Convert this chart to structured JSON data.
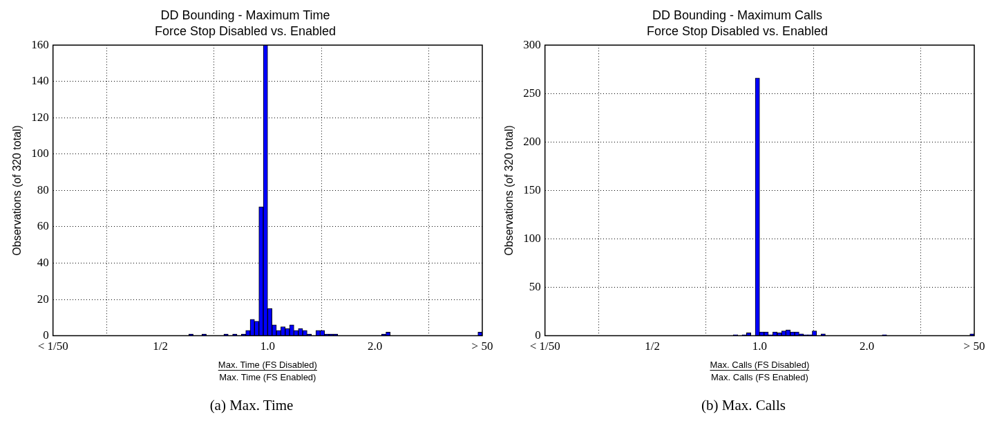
{
  "chart_data": [
    {
      "type": "histogram",
      "title": "DD Bounding - Maximum Time",
      "subtitle": "Force Stop Disabled vs. Enabled",
      "xlabel": "Max. Time (FS Disabled)\nMax. Time (FS Enabled)",
      "ylabel": "Observations (of 320 total)",
      "color": "#0000ff",
      "bins": [
        0.25,
        0.2572,
        0.2646,
        0.2721,
        0.28,
        0.288,
        0.2963,
        0.3048,
        0.3135,
        0.3225,
        0.3318,
        0.3413,
        0.3511,
        0.3611,
        0.3715,
        0.3822,
        0.3931,
        0.4044,
        0.416,
        0.428,
        0.4402,
        0.4529,
        0.4659,
        0.4792,
        0.493,
        0.5071,
        0.5217,
        0.5367,
        0.5521,
        0.5679,
        0.5842,
        0.601,
        0.6182,
        0.6359,
        0.6542,
        0.673,
        0.6923,
        0.7121,
        0.7326,
        0.7536,
        0.7752,
        0.7975,
        0.8203,
        0.8439,
        0.8681,
        0.893,
        0.9186,
        0.945,
        0.9721,
        1,
        1.0287,
        1.0582,
        1.0886,
        1.1198,
        1.152,
        1.185,
        1.219,
        1.254,
        1.29,
        1.327,
        1.3651,
        1.4043,
        1.4446,
        1.486,
        1.5287,
        1.5725,
        1.6177,
        1.6641,
        1.7118,
        1.7609,
        1.8115,
        1.8635,
        1.9169,
        1.9719,
        2.0285,
        2.0867,
        2.1466,
        2.2082,
        2.2716,
        2.3368,
        2.4038,
        2.4728,
        2.5438,
        2.6167,
        2.6918,
        2.7691,
        2.8485,
        2.9303,
        3.0144,
        3.1009,
        3.1899,
        3.2814,
        3.3756,
        3.4724,
        3.5721,
        3.6746,
        3.78,
        3.8885,
        4
      ],
      "values": [
        0,
        0,
        0,
        0,
        0,
        0,
        0,
        0,
        0,
        0,
        0,
        0,
        0,
        0,
        0,
        0,
        0,
        0,
        0,
        0,
        0,
        0,
        0,
        0,
        0,
        0,
        0,
        0,
        0,
        0,
        0,
        1,
        0,
        0,
        1,
        0,
        0,
        0,
        0,
        1,
        0,
        1,
        0,
        1,
        3,
        9,
        8,
        71,
        160,
        15,
        6,
        3,
        5,
        4,
        6,
        3,
        4,
        3,
        1,
        0,
        3,
        3,
        1,
        1,
        1,
        0,
        0,
        0,
        0,
        0,
        0,
        0,
        0,
        0,
        0,
        1,
        2,
        0,
        0,
        0,
        0,
        0,
        0,
        0,
        0,
        0,
        0,
        0,
        0,
        0,
        0,
        0,
        0,
        0,
        0,
        0,
        0,
        2
      ],
      "log": "x",
      "xlim": [
        0.25,
        4
      ],
      "xticks": [
        {
          "value": 0.25,
          "label": "< 1/50"
        },
        {
          "value": 0.5,
          "label": "1/2"
        },
        {
          "value": 1,
          "label": "1.0"
        },
        {
          "value": 2,
          "label": "2.0"
        },
        {
          "value": 4,
          "label": "> 50"
        }
      ],
      "ylim": [
        0,
        160
      ],
      "yticks": [
        0,
        20,
        40,
        60,
        80,
        100,
        120,
        140,
        160
      ],
      "grid": true,
      "annotations": [
        "(a) Max. Time"
      ]
    },
    {
      "type": "histogram",
      "title": "DD Bounding - Maximum Calls",
      "subtitle": "Force Stop Disabled vs. Enabled",
      "xlabel": "Max. Calls (FS Disabled)\nMax. Calls (FS Enabled)",
      "ylabel": "Observations (of 320 total)",
      "color": "#0000ff",
      "bins": [
        0.25,
        0.2572,
        0.2646,
        0.2721,
        0.28,
        0.288,
        0.2963,
        0.3048,
        0.3135,
        0.3225,
        0.3318,
        0.3413,
        0.3511,
        0.3611,
        0.3715,
        0.3822,
        0.3931,
        0.4044,
        0.416,
        0.428,
        0.4402,
        0.4529,
        0.4659,
        0.4792,
        0.493,
        0.5071,
        0.5217,
        0.5367,
        0.5521,
        0.5679,
        0.5842,
        0.601,
        0.6182,
        0.6359,
        0.6542,
        0.673,
        0.6923,
        0.7121,
        0.7326,
        0.7536,
        0.7752,
        0.7975,
        0.8203,
        0.8439,
        0.8681,
        0.893,
        0.9186,
        0.945,
        0.9721,
        1,
        1.0287,
        1.0582,
        1.0886,
        1.1198,
        1.152,
        1.185,
        1.219,
        1.254,
        1.29,
        1.327,
        1.3651,
        1.4043,
        1.4446,
        1.486,
        1.5287,
        1.5725,
        1.6177,
        1.6641,
        1.7118,
        1.7609,
        1.8115,
        1.8635,
        1.9169,
        1.9719,
        2.0285,
        2.0867,
        2.1466,
        2.2082,
        2.2716,
        2.3368,
        2.4038,
        2.4728,
        2.5438,
        2.6167,
        2.6918,
        2.7691,
        2.8485,
        2.9303,
        3.0144,
        3.1009,
        3.1899,
        3.2814,
        3.3756,
        3.4724,
        3.5721,
        3.6746,
        3.78,
        3.8885,
        4
      ],
      "values": [
        0,
        0,
        0,
        0,
        0,
        0,
        0,
        0,
        0,
        0,
        0,
        0,
        0,
        0,
        0,
        0,
        0,
        0,
        0,
        0,
        0,
        0,
        0,
        0,
        0,
        0,
        0,
        0,
        0,
        0,
        0,
        0,
        0,
        0,
        0,
        0,
        0,
        0,
        0,
        0,
        0,
        0,
        0,
        1,
        0,
        1,
        3,
        0,
        266,
        4,
        4,
        1,
        4,
        3,
        5,
        6,
        4,
        4,
        2,
        1,
        1,
        5,
        0,
        2,
        0,
        0,
        0,
        0,
        0,
        0,
        0,
        0,
        0,
        0,
        0,
        0,
        0,
        1,
        0,
        0,
        0,
        0,
        0,
        0,
        0,
        0,
        0,
        0,
        0,
        0,
        0,
        0,
        0,
        0,
        0,
        0,
        0,
        2
      ],
      "log": "x",
      "xlim": [
        0.25,
        4
      ],
      "xticks": [
        {
          "value": 0.25,
          "label": "< 1/50"
        },
        {
          "value": 0.5,
          "label": "1/2"
        },
        {
          "value": 1,
          "label": "1.0"
        },
        {
          "value": 2,
          "label": "2.0"
        },
        {
          "value": 4,
          "label": "> 50"
        }
      ],
      "ylim": [
        0,
        300
      ],
      "yticks": [
        0,
        50,
        100,
        150,
        200,
        250,
        300
      ],
      "grid": true,
      "annotations": [
        "(b) Max. Calls"
      ]
    }
  ]
}
